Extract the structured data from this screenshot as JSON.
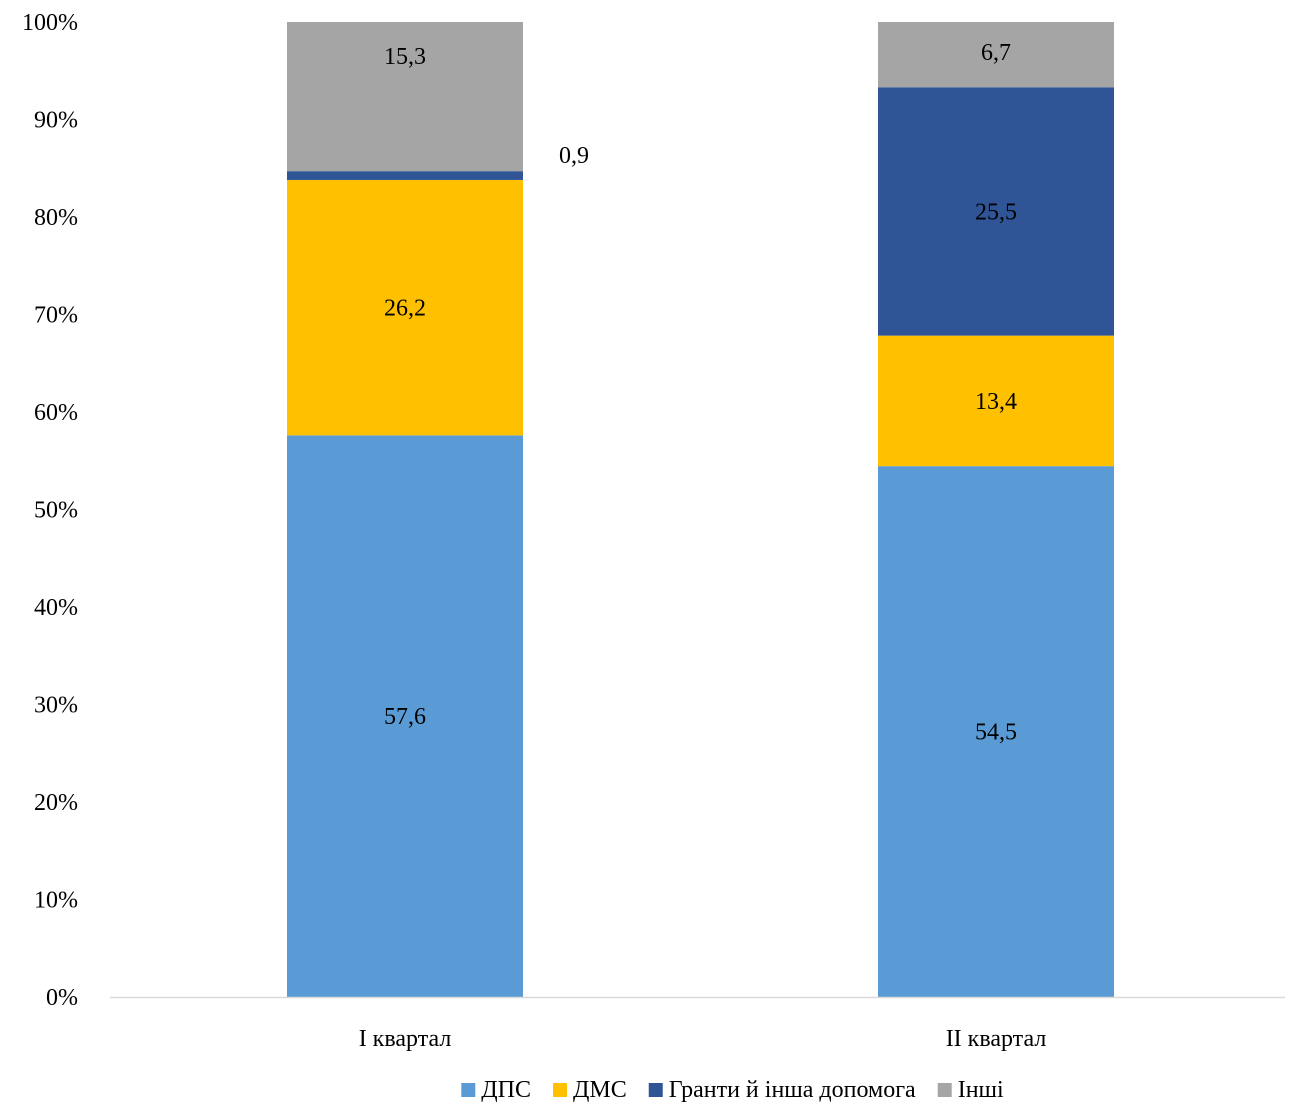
{
  "chart_data": {
    "type": "bar",
    "stacked": true,
    "percent_stacked": true,
    "title": "",
    "xlabel": "",
    "ylabel": "",
    "ylim": [
      0,
      100
    ],
    "y_ticks": [
      "0%",
      "10%",
      "20%",
      "30%",
      "40%",
      "50%",
      "60%",
      "70%",
      "80%",
      "90%",
      "100%"
    ],
    "categories": [
      "І квартал",
      "ІІ квартал"
    ],
    "series": [
      {
        "name": "ДПС",
        "color": "#5B9BD5",
        "values": [
          57.6,
          54.5
        ],
        "labels": [
          "57,6",
          "54,5"
        ]
      },
      {
        "name": "ДМС",
        "color": "#FFC000",
        "values": [
          26.2,
          13.4
        ],
        "labels": [
          "26,2",
          "13,4"
        ]
      },
      {
        "name": "Гранти й інша допомога",
        "color": "#2F5597",
        "values": [
          0.9,
          25.5
        ],
        "labels": [
          "0,9",
          "25,5"
        ]
      },
      {
        "name": "Інші",
        "color": "#A5A5A5",
        "values": [
          15.3,
          6.7
        ],
        "labels": [
          "15,3",
          "6,7"
        ]
      }
    ],
    "grid": false,
    "legend_position": "bottom"
  }
}
